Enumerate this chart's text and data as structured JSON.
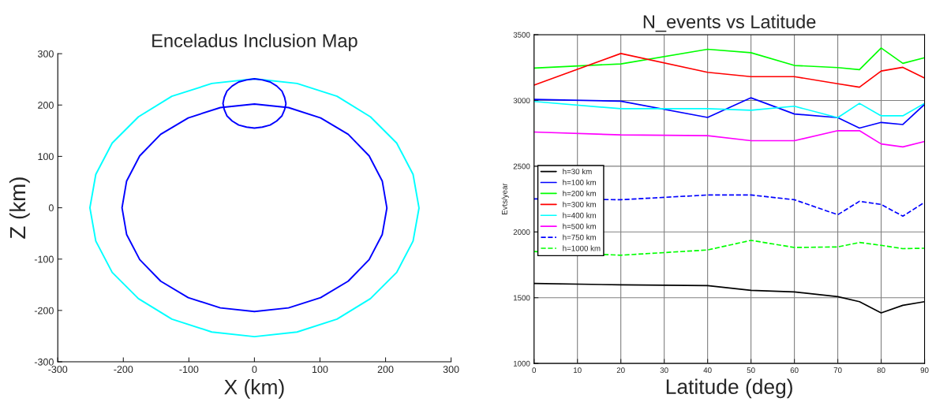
{
  "chart_data": [
    {
      "type": "line",
      "title": "Enceladus Inclusion Map",
      "xlabel": "X (km)",
      "ylabel": "Z (km)",
      "xlim": [
        -300,
        300
      ],
      "ylim": [
        -300,
        300
      ],
      "xticks": [
        -300,
        -200,
        -100,
        0,
        100,
        200,
        300
      ],
      "yticks": [
        -300,
        -200,
        -100,
        0,
        100,
        200,
        300
      ],
      "grid": false,
      "legend": false,
      "series": [
        {
          "color": "#00ffff",
          "x": [
            251,
            242,
            217,
            177,
            126,
            65,
            0,
            -65,
            -126,
            -177,
            -217,
            -242,
            -251,
            -242,
            -217,
            -177,
            -126,
            -65,
            0,
            65,
            126,
            177,
            217,
            242,
            251
          ],
          "values": [
            0,
            65,
            126,
            177,
            217,
            242,
            251,
            242,
            217,
            177,
            126,
            65,
            0,
            -65,
            -126,
            -177,
            -217,
            -242,
            -251,
            -242,
            -217,
            -177,
            -126,
            -65,
            -1
          ]
        },
        {
          "color": "#0000ff",
          "x": [
            202,
            195,
            175,
            143,
            101,
            52,
            0,
            -52,
            -101,
            -143,
            -175,
            -195,
            -202,
            -195,
            -175,
            -143,
            -101,
            -52,
            0,
            52,
            101,
            143,
            175,
            195,
            202
          ],
          "values": [
            0,
            52,
            101,
            143,
            175,
            195,
            202,
            195,
            175,
            143,
            101,
            52,
            0,
            -52,
            -101,
            -143,
            -175,
            -195,
            -202,
            -195,
            -175,
            -143,
            -101,
            -52,
            -1
          ]
        },
        {
          "color": "#0000ff",
          "x": [
            48,
            46,
            42,
            34,
            24,
            12,
            0,
            -12,
            -24,
            -34,
            -42,
            -46,
            -48,
            -46,
            -42,
            -34,
            -24,
            -12,
            0,
            12,
            24,
            34,
            42,
            46,
            48
          ],
          "values": [
            203,
            215,
            227,
            237,
            245,
            249,
            251,
            249,
            245,
            237,
            227,
            215,
            203,
            191,
            179,
            169,
            161,
            157,
            155,
            157,
            161,
            169,
            179,
            191,
            202
          ]
        }
      ]
    },
    {
      "type": "line",
      "title": "N_events vs Latitude",
      "xlabel": "Latitude (deg)",
      "ylabel": "Evts/year",
      "xlim": [
        0,
        90
      ],
      "ylim": [
        1000,
        3500
      ],
      "xticks": [
        0,
        10,
        20,
        30,
        40,
        50,
        60,
        70,
        80,
        90
      ],
      "yticks": [
        1000,
        1500,
        2000,
        2500,
        3000,
        3500
      ],
      "grid": true,
      "legend": "left",
      "x": [
        0,
        20,
        40,
        50,
        60,
        70,
        75,
        80,
        85,
        90
      ],
      "series": [
        {
          "name": "h=30 km",
          "color": "#000000",
          "values": [
            1608,
            1598,
            1592,
            1556,
            1544,
            1508,
            1470,
            1384,
            1442,
            1470
          ]
        },
        {
          "name": "h=100 km",
          "color": "#0000ff",
          "values": [
            3008,
            2994,
            2871,
            3020,
            2897,
            2869,
            2790,
            2833,
            2817,
            2970
          ]
        },
        {
          "name": "h=200 km",
          "color": "#00ff00",
          "values": [
            3246,
            3278,
            3389,
            3363,
            3266,
            3250,
            3234,
            3399,
            3282,
            3325
          ]
        },
        {
          "name": "h=300 km",
          "color": "#ff0000",
          "values": [
            3117,
            3357,
            3214,
            3181,
            3181,
            3127,
            3101,
            3224,
            3252,
            3171
          ]
        },
        {
          "name": "h=400 km",
          "color": "#00ffff",
          "values": [
            2992,
            2937,
            2937,
            2925,
            2956,
            2869,
            2978,
            2883,
            2883,
            2978
          ]
        },
        {
          "name": "h=500 km",
          "color": "#ff00ff",
          "values": [
            2760,
            2738,
            2732,
            2694,
            2694,
            2770,
            2770,
            2669,
            2647,
            2688
          ]
        },
        {
          "name": "h=750 km",
          "color": "#0000ff",
          "line_style": "dashed",
          "values": [
            2251,
            2245,
            2281,
            2281,
            2245,
            2131,
            2233,
            2209,
            2120,
            2225
          ]
        },
        {
          "name": "h=1000 km",
          "color": "#00ff00",
          "line_style": "dashed",
          "values": [
            1851,
            1823,
            1863,
            1936,
            1882,
            1886,
            1920,
            1898,
            1873,
            1876
          ]
        }
      ]
    }
  ]
}
